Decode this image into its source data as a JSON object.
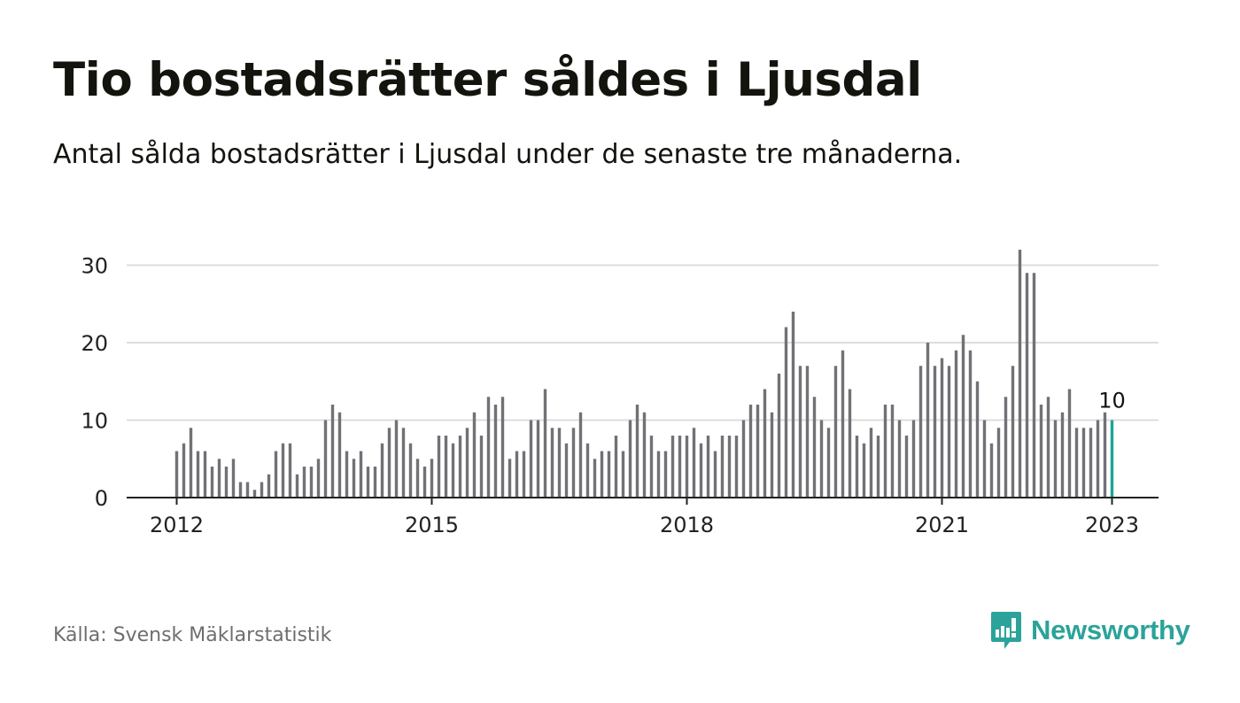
{
  "title": "Tio bostadsrätter såldes i Ljusdal",
  "subtitle": "Antal sålda bostadsrätter i Ljusdal under de senaste tre månaderna.",
  "source": "Källa: Svensk Mäklarstatistik",
  "brand": {
    "name": "Newsworthy",
    "icon": "newsworthy-logo-icon"
  },
  "colors": {
    "bar": "#727176",
    "highlight": "#1ea596",
    "grid": "#dddddd",
    "axis": "#222222",
    "brand": "#2ba39a"
  },
  "chart_data": {
    "type": "bar",
    "x_start": "2012-01",
    "x_end": "2023-01",
    "values": [
      6,
      7,
      9,
      6,
      6,
      4,
      5,
      4,
      5,
      2,
      2,
      1,
      2,
      3,
      6,
      7,
      7,
      3,
      4,
      4,
      5,
      10,
      12,
      11,
      6,
      5,
      6,
      4,
      4,
      7,
      9,
      10,
      9,
      7,
      5,
      4,
      5,
      8,
      8,
      7,
      8,
      9,
      11,
      8,
      13,
      12,
      13,
      5,
      6,
      6,
      10,
      10,
      14,
      9,
      9,
      7,
      9,
      11,
      7,
      5,
      6,
      6,
      8,
      6,
      10,
      12,
      11,
      8,
      6,
      6,
      8,
      8,
      8,
      9,
      7,
      8,
      6,
      8,
      8,
      8,
      10,
      12,
      12,
      14,
      11,
      16,
      22,
      24,
      17,
      17,
      13,
      10,
      9,
      17,
      19,
      14,
      8,
      7,
      9,
      8,
      12,
      12,
      10,
      8,
      10,
      17,
      20,
      17,
      18,
      17,
      19,
      21,
      19,
      15,
      10,
      7,
      9,
      13,
      17,
      32,
      29,
      29,
      12,
      13,
      10,
      11,
      14,
      9,
      9,
      9,
      10,
      11,
      10
    ],
    "highlight_last": true,
    "last_value_label": "10",
    "x_ticks": [
      "2012",
      "2015",
      "2018",
      "2021",
      "2023"
    ],
    "y_ticks": [
      "0",
      "10",
      "20",
      "30"
    ],
    "ylim": [
      0,
      33
    ],
    "grid": true,
    "legend": "none"
  }
}
